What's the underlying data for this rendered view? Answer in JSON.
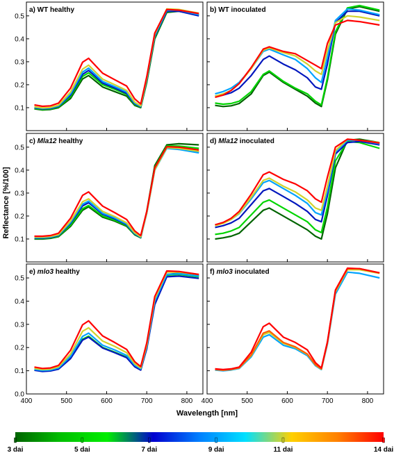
{
  "figure": {
    "ylabel": "Reflectance [%/100]",
    "xlabel": "Wavelength [nm]",
    "x_ticks": [
      "400",
      "500",
      "600",
      "700",
      "800"
    ],
    "y_ticks": [
      "0.0",
      "0.1",
      "0.2",
      "0.3",
      "0.4",
      "0.5"
    ]
  },
  "colorbar": {
    "labels": [
      "3 dai",
      "5 dai",
      "7 dai",
      "9 dai",
      "11 dai",
      "14 dai"
    ],
    "label_days": [
      3,
      5,
      7,
      9,
      11,
      14
    ],
    "day_range": [
      3,
      14
    ],
    "stops": [
      "#006400",
      "#00c000",
      "#00ee00",
      "#0000d0",
      "#0080ff",
      "#00e0ff",
      "#ffd000",
      "#ff8000",
      "#ff0000"
    ]
  },
  "chart_data": [
    {
      "id": "a",
      "title_prefix": "a) ",
      "title_italic": "",
      "title_suffix": "WT healthy",
      "type": "line",
      "xlim": [
        400,
        840
      ],
      "ylim": [
        0,
        0.56
      ],
      "grid": false,
      "series": [
        {
          "day": 3,
          "values": [
            0.095,
            0.09,
            0.092,
            0.1,
            0.14,
            0.225,
            0.24,
            0.19,
            0.17,
            0.15,
            0.11,
            0.1,
            0.21,
            0.4,
            0.515,
            0.52,
            0.505
          ]
        },
        {
          "day": 5,
          "values": [
            0.097,
            0.092,
            0.094,
            0.103,
            0.148,
            0.236,
            0.252,
            0.2,
            0.18,
            0.158,
            0.114,
            0.102,
            0.215,
            0.405,
            0.518,
            0.522,
            0.505
          ]
        },
        {
          "day": 7,
          "values": [
            0.1,
            0.095,
            0.097,
            0.106,
            0.155,
            0.245,
            0.262,
            0.207,
            0.186,
            0.162,
            0.117,
            0.104,
            0.22,
            0.41,
            0.52,
            0.52,
            0.5
          ]
        },
        {
          "day": 9,
          "values": [
            0.102,
            0.097,
            0.099,
            0.108,
            0.16,
            0.255,
            0.272,
            0.214,
            0.192,
            0.168,
            0.12,
            0.106,
            0.225,
            0.415,
            0.525,
            0.525,
            0.505
          ]
        },
        {
          "day": 11,
          "values": [
            0.104,
            0.099,
            0.101,
            0.111,
            0.168,
            0.268,
            0.285,
            0.224,
            0.2,
            0.175,
            0.124,
            0.108,
            0.228,
            0.42,
            0.53,
            0.528,
            0.512
          ]
        },
        {
          "day": 14,
          "values": [
            0.112,
            0.106,
            0.108,
            0.12,
            0.185,
            0.298,
            0.315,
            0.25,
            0.222,
            0.194,
            0.138,
            0.116,
            0.235,
            0.425,
            0.528,
            0.525,
            0.51
          ]
        }
      ]
    },
    {
      "id": "b",
      "title_prefix": "b) ",
      "title_italic": "",
      "title_suffix": "WT inoculated",
      "type": "line",
      "xlim": [
        400,
        840
      ],
      "ylim": [
        0,
        0.56
      ],
      "grid": false,
      "series": [
        {
          "day": 3,
          "values": [
            0.11,
            0.105,
            0.108,
            0.118,
            0.16,
            0.24,
            0.255,
            0.21,
            0.18,
            0.15,
            0.12,
            0.105,
            0.22,
            0.42,
            0.53,
            0.54,
            0.52
          ]
        },
        {
          "day": 5,
          "values": [
            0.12,
            0.115,
            0.118,
            0.128,
            0.17,
            0.245,
            0.26,
            0.215,
            0.185,
            0.16,
            0.128,
            0.112,
            0.23,
            0.43,
            0.535,
            0.545,
            0.525
          ]
        },
        {
          "day": 7,
          "values": [
            0.15,
            0.155,
            0.165,
            0.185,
            0.24,
            0.31,
            0.325,
            0.29,
            0.265,
            0.23,
            0.19,
            0.18,
            0.29,
            0.47,
            0.52,
            0.52,
            0.5
          ]
        },
        {
          "day": 9,
          "values": [
            0.16,
            0.17,
            0.185,
            0.21,
            0.27,
            0.345,
            0.355,
            0.33,
            0.31,
            0.27,
            0.23,
            0.21,
            0.32,
            0.48,
            0.53,
            0.525,
            0.505
          ]
        },
        {
          "day": 11,
          "values": [
            0.15,
            0.16,
            0.175,
            0.205,
            0.27,
            0.35,
            0.36,
            0.34,
            0.325,
            0.29,
            0.26,
            0.245,
            0.35,
            0.47,
            0.5,
            0.495,
            0.48
          ]
        },
        {
          "day": 14,
          "values": [
            0.145,
            0.155,
            0.175,
            0.205,
            0.275,
            0.355,
            0.365,
            0.345,
            0.335,
            0.305,
            0.285,
            0.27,
            0.38,
            0.46,
            0.48,
            0.475,
            0.46
          ]
        }
      ]
    },
    {
      "id": "c",
      "title_prefix": "c) ",
      "title_italic": "Mla12",
      "title_suffix": " healthy",
      "type": "line",
      "xlim": [
        400,
        840
      ],
      "ylim": [
        0,
        0.56
      ],
      "grid": false,
      "series": [
        {
          "day": 3,
          "values": [
            0.1,
            0.1,
            0.103,
            0.11,
            0.155,
            0.225,
            0.24,
            0.195,
            0.178,
            0.155,
            0.118,
            0.105,
            0.22,
            0.42,
            0.51,
            0.515,
            0.51
          ]
        },
        {
          "day": 5,
          "values": [
            0.102,
            0.102,
            0.105,
            0.112,
            0.16,
            0.232,
            0.246,
            0.2,
            0.182,
            0.158,
            0.12,
            0.106,
            0.218,
            0.412,
            0.505,
            0.505,
            0.495
          ]
        },
        {
          "day": 7,
          "values": [
            0.104,
            0.104,
            0.107,
            0.115,
            0.168,
            0.244,
            0.258,
            0.208,
            0.188,
            0.162,
            0.122,
            0.107,
            0.214,
            0.405,
            0.498,
            0.495,
            0.48
          ]
        },
        {
          "day": 9,
          "values": [
            0.106,
            0.106,
            0.109,
            0.117,
            0.172,
            0.252,
            0.265,
            0.212,
            0.192,
            0.165,
            0.124,
            0.108,
            0.212,
            0.4,
            0.495,
            0.49,
            0.475
          ]
        },
        {
          "day": 11,
          "values": [
            0.108,
            0.108,
            0.111,
            0.119,
            0.178,
            0.262,
            0.275,
            0.22,
            0.198,
            0.17,
            0.127,
            0.11,
            0.214,
            0.402,
            0.498,
            0.495,
            0.482
          ]
        },
        {
          "day": 14,
          "values": [
            0.112,
            0.112,
            0.115,
            0.125,
            0.19,
            0.29,
            0.305,
            0.243,
            0.215,
            0.185,
            0.135,
            0.115,
            0.22,
            0.41,
            0.502,
            0.5,
            0.488
          ]
        }
      ]
    },
    {
      "id": "d",
      "title_prefix": "d) ",
      "title_italic": "Mla12",
      "title_suffix": " inoculated",
      "type": "line",
      "xlim": [
        400,
        840
      ],
      "ylim": [
        0,
        0.56
      ],
      "grid": false,
      "series": [
        {
          "day": 3,
          "values": [
            0.1,
            0.105,
            0.112,
            0.125,
            0.175,
            0.225,
            0.235,
            0.2,
            0.17,
            0.14,
            0.112,
            0.1,
            0.21,
            0.41,
            0.53,
            0.535,
            0.52
          ]
        },
        {
          "day": 5,
          "values": [
            0.12,
            0.125,
            0.135,
            0.15,
            0.205,
            0.26,
            0.27,
            0.235,
            0.205,
            0.175,
            0.14,
            0.128,
            0.24,
            0.44,
            0.525,
            0.52,
            0.495
          ]
        },
        {
          "day": 7,
          "values": [
            0.15,
            0.158,
            0.17,
            0.19,
            0.25,
            0.31,
            0.32,
            0.285,
            0.255,
            0.22,
            0.185,
            0.175,
            0.29,
            0.47,
            0.52,
            0.525,
            0.51
          ]
        },
        {
          "day": 9,
          "values": [
            0.16,
            0.17,
            0.185,
            0.21,
            0.275,
            0.345,
            0.355,
            0.32,
            0.29,
            0.255,
            0.215,
            0.205,
            0.31,
            0.48,
            0.53,
            0.53,
            0.515
          ]
        },
        {
          "day": 11,
          "values": [
            0.158,
            0.168,
            0.185,
            0.212,
            0.282,
            0.355,
            0.365,
            0.33,
            0.305,
            0.27,
            0.235,
            0.225,
            0.33,
            0.485,
            0.535,
            0.53,
            0.52
          ]
        },
        {
          "day": 14,
          "values": [
            0.162,
            0.172,
            0.19,
            0.22,
            0.295,
            0.38,
            0.392,
            0.36,
            0.34,
            0.31,
            0.275,
            0.26,
            0.37,
            0.5,
            0.535,
            0.53,
            0.518
          ]
        }
      ]
    },
    {
      "id": "e",
      "title_prefix": "e) ",
      "title_italic": "mlo3",
      "title_suffix": " healthy",
      "type": "line",
      "xlim": [
        400,
        840
      ],
      "ylim": [
        0,
        0.56
      ],
      "grid": false,
      "series": [
        {
          "day": 3,
          "values": [
            0.105,
            0.1,
            0.102,
            0.11,
            0.155,
            0.235,
            0.248,
            0.2,
            0.18,
            0.158,
            0.118,
            0.104,
            0.2,
            0.4,
            0.515,
            0.52,
            0.51
          ]
        },
        {
          "day": 5,
          "values": [
            0.104,
            0.099,
            0.101,
            0.109,
            0.155,
            0.236,
            0.249,
            0.2,
            0.18,
            0.158,
            0.118,
            0.104,
            0.198,
            0.395,
            0.512,
            0.515,
            0.505
          ]
        },
        {
          "day": 7,
          "values": [
            0.102,
            0.097,
            0.099,
            0.107,
            0.152,
            0.232,
            0.245,
            0.198,
            0.178,
            0.156,
            0.117,
            0.103,
            0.195,
            0.385,
            0.505,
            0.508,
            0.498
          ]
        },
        {
          "day": 9,
          "values": [
            0.106,
            0.101,
            0.103,
            0.112,
            0.162,
            0.248,
            0.262,
            0.21,
            0.19,
            0.166,
            0.124,
            0.108,
            0.205,
            0.4,
            0.515,
            0.518,
            0.508
          ]
        },
        {
          "day": 11,
          "values": [
            0.11,
            0.105,
            0.107,
            0.117,
            0.172,
            0.27,
            0.285,
            0.228,
            0.205,
            0.178,
            0.13,
            0.112,
            0.21,
            0.41,
            0.525,
            0.525,
            0.515
          ]
        },
        {
          "day": 14,
          "values": [
            0.116,
            0.11,
            0.112,
            0.123,
            0.188,
            0.298,
            0.315,
            0.25,
            0.222,
            0.192,
            0.139,
            0.118,
            0.22,
            0.42,
            0.53,
            0.528,
            0.515
          ]
        }
      ]
    },
    {
      "id": "f",
      "title_prefix": "f) ",
      "title_italic": "mlo3",
      "title_suffix": " inoculated",
      "type": "line",
      "xlim": [
        400,
        840
      ],
      "ylim": [
        0,
        0.56
      ],
      "grid": false,
      "series": [
        {
          "day": 9,
          "values": [
            0.103,
            0.1,
            0.103,
            0.11,
            0.16,
            0.245,
            0.255,
            0.21,
            0.195,
            0.165,
            0.122,
            0.105,
            0.215,
            0.43,
            0.525,
            0.52,
            0.5
          ]
        },
        {
          "day": 11,
          "values": [
            0.105,
            0.102,
            0.105,
            0.112,
            0.165,
            0.255,
            0.265,
            0.218,
            0.2,
            0.17,
            0.125,
            0.107,
            0.22,
            0.44,
            0.535,
            0.535,
            0.52
          ]
        },
        {
          "day": 13,
          "values": [
            0.106,
            0.103,
            0.106,
            0.113,
            0.168,
            0.262,
            0.272,
            0.222,
            0.203,
            0.172,
            0.126,
            0.108,
            0.222,
            0.445,
            0.54,
            0.54,
            0.522
          ]
        },
        {
          "day": 14,
          "values": [
            0.108,
            0.105,
            0.108,
            0.116,
            0.18,
            0.29,
            0.305,
            0.245,
            0.222,
            0.19,
            0.135,
            0.112,
            0.225,
            0.448,
            0.542,
            0.54,
            0.522
          ]
        }
      ]
    }
  ],
  "wavelengths": [
    420,
    440,
    460,
    480,
    510,
    540,
    555,
    590,
    620,
    650,
    670,
    685,
    700,
    720,
    750,
    780,
    830
  ]
}
